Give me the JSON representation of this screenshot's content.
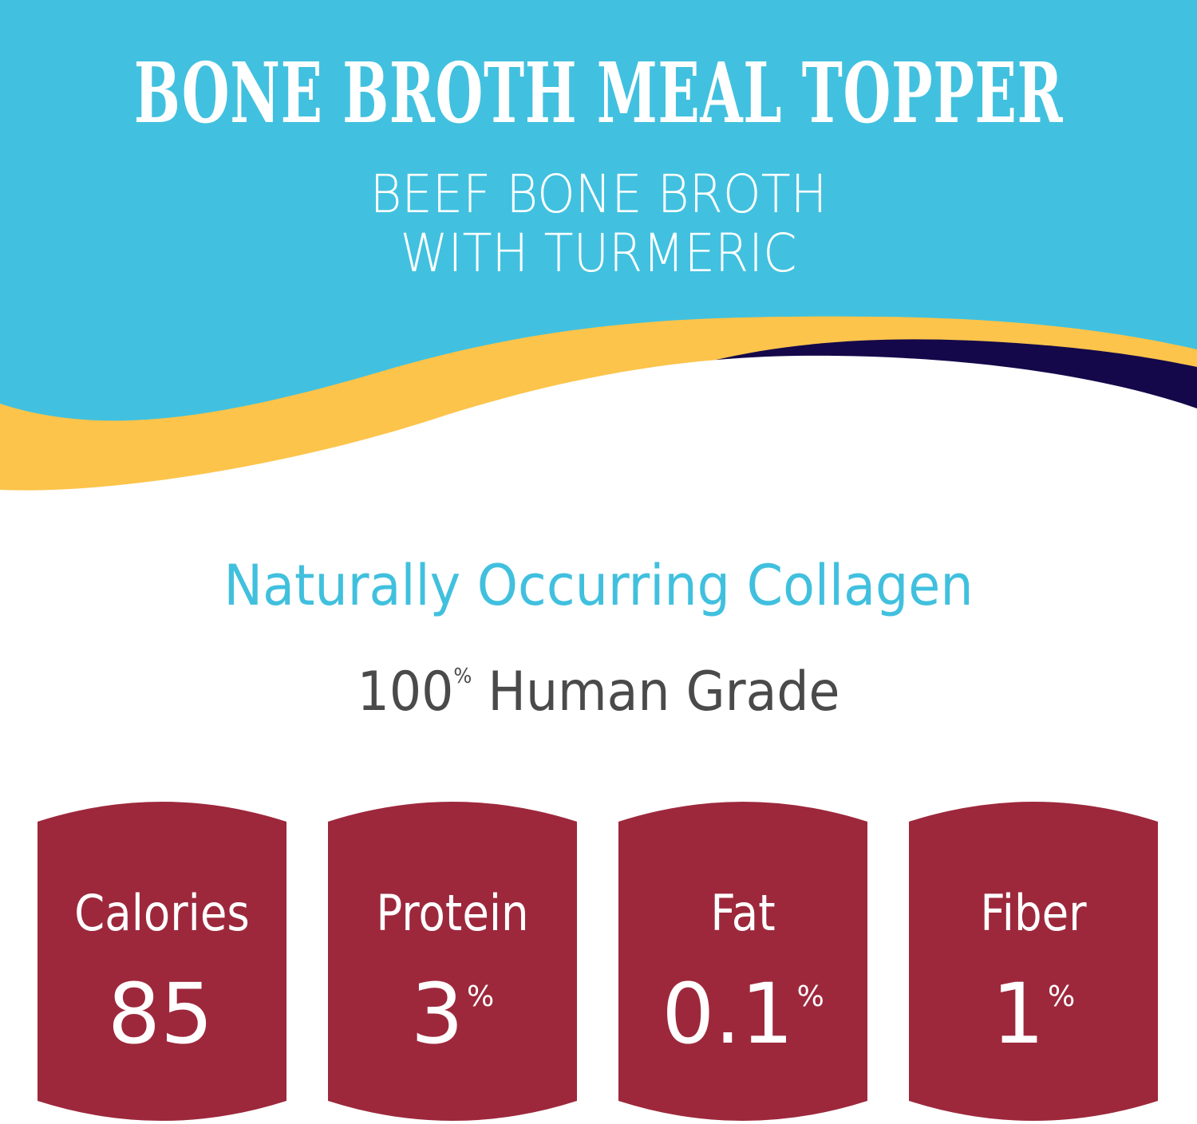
{
  "colors": {
    "cyan": "#41c1df",
    "yellow": "#fcc44b",
    "navy": "#14084a",
    "card": "#9d283c",
    "collagen_text": "#41c0de",
    "grade_text": "#4a4a4a"
  },
  "header": {
    "title": "BONE BROTH MEAL TOPPER",
    "subtitle_line1": "BEEF BONE BROTH",
    "subtitle_line2": "WITH TURMERIC"
  },
  "claims": {
    "collagen": "Naturally Occurring Collagen",
    "grade_number": "100",
    "grade_unit": "%",
    "grade_text": " Human Grade"
  },
  "nutrition": [
    {
      "label": "Calories",
      "value": "85",
      "unit": ""
    },
    {
      "label": "Protein",
      "value": "3",
      "unit": "%"
    },
    {
      "label": "Fat",
      "value": "0.1",
      "unit": "%"
    },
    {
      "label": "Fiber",
      "value": "1",
      "unit": "%"
    }
  ]
}
